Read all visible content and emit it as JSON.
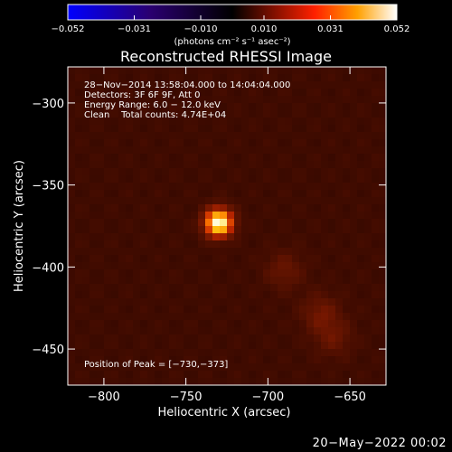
{
  "chart_data": {
    "type": "heatmap",
    "title": "Reconstructed RHESSI Image",
    "xlabel": "Heliocentric X (arcsec)",
    "ylabel": "Heliocentric Y (arcsec)",
    "xlim": [
      -822,
      -628
    ],
    "ylim": [
      -472,
      -278
    ],
    "xticks": [
      -800,
      -750,
      -700,
      -650
    ],
    "xtick_labels": [
      "−800",
      "−750",
      "−700",
      "−650"
    ],
    "yticks": [
      -300,
      -350,
      -400,
      -450
    ],
    "ytick_labels": [
      "−300",
      "−350",
      "−400",
      "−450"
    ],
    "colorbar": {
      "label": "(photons cm⁻² s⁻¹ asec⁻²)",
      "range": [
        -0.052,
        0.052
      ],
      "ticks": [
        -0.052,
        -0.031,
        -0.01,
        0.01,
        0.031,
        0.052
      ],
      "tick_labels": [
        "−0.052",
        "−0.031",
        "−0.010",
        "0.010",
        "0.031",
        "0.052"
      ]
    },
    "annotations": [
      "28−Nov−2014 13:58:04.000 to 14:04:04.000",
      "Detectors: 3F 6F 9F, Att 0",
      "Energy Range: 6.0 − 12.0 keV",
      "Clean    Total counts: 4.74E+04",
      "Position of Peak = [−730,−373]"
    ],
    "peak": {
      "x": -730,
      "y": -373
    },
    "secondary_sources": [
      {
        "x": -690,
        "y": -402,
        "relative": 0.12
      },
      {
        "x": -668,
        "y": -428,
        "relative": 0.14
      },
      {
        "x": -660,
        "y": -443,
        "relative": 0.12
      }
    ]
  },
  "footer": {
    "date": "20−May−2022 00:02"
  }
}
